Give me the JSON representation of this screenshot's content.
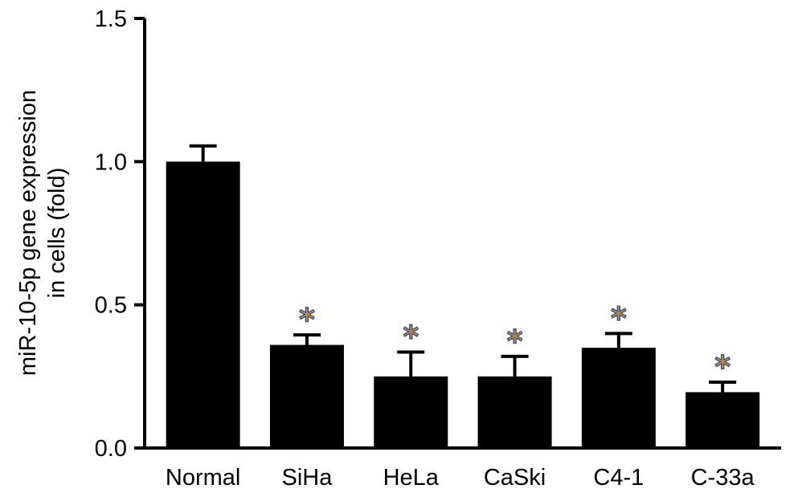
{
  "chart_data": {
    "type": "bar",
    "categories": [
      "Normal",
      "SiHa",
      "HeLa",
      "CaSki",
      "C4-1",
      "C-33a"
    ],
    "values": [
      1.0,
      0.36,
      0.25,
      0.25,
      0.35,
      0.195
    ],
    "error_upper": [
      0.055,
      0.035,
      0.085,
      0.07,
      0.05,
      0.035
    ],
    "significance": [
      "",
      "*",
      "*",
      "*",
      "*",
      "*"
    ],
    "ylabel_lines": [
      "miR-10-5p gene expression",
      "in cells (fold)"
    ],
    "xlabel": "",
    "title": "",
    "ylim": [
      0,
      1.5
    ],
    "yticks": [
      0,
      0.5,
      1.0,
      1.5
    ],
    "ytick_labels": [
      "0.0",
      "0.5",
      "1.0",
      "1.5"
    ],
    "bar_color": "#000000",
    "star_fill_color": "#c08a3a",
    "star_accent_color": "#2a4c8c",
    "grid": false,
    "legend": "none"
  }
}
